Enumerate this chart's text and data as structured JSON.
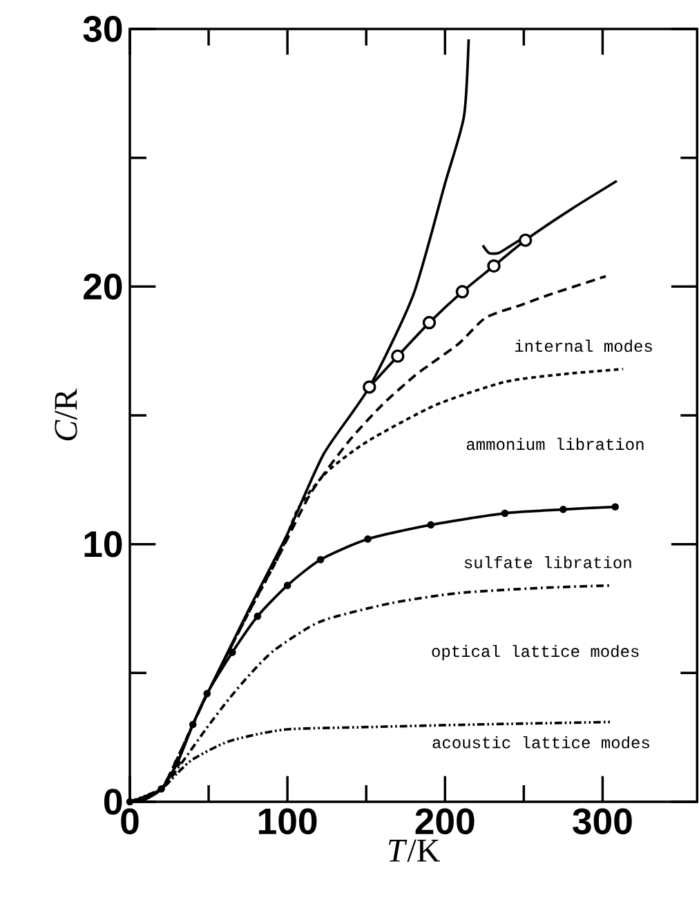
{
  "chart_data": {
    "type": "line",
    "xlabel": "*T*/K",
    "ylabel": "*C*/R",
    "xlim": [
      0,
      360
    ],
    "ylim": [
      0,
      30
    ],
    "xticks": [
      0,
      {
        "value": 50,
        "label": null
      },
      100,
      {
        "value": 150,
        "label": null
      },
      200,
      {
        "value": 250,
        "label": null
      },
      300
    ],
    "yticks": [
      0,
      {
        "value": 5,
        "label": null
      },
      10,
      {
        "value": 15,
        "label": null
      },
      20,
      {
        "value": 25,
        "label": null
      },
      30
    ],
    "grid": false,
    "series": [
      {
        "color": "#000000",
        "line_style": "solid",
        "x": [
          0,
          10,
          20,
          30,
          40,
          50,
          75,
          100,
          123,
          152,
          180,
          200,
          212,
          215
        ],
        "values": [
          0,
          0.1,
          0.5,
          1.5,
          3.0,
          4.3,
          7.4,
          10.4,
          13.5,
          16.1,
          19.7,
          24.0,
          26.6,
          29.6
        ]
      },
      {
        "color": "#000000",
        "line_style": "solid",
        "x": [
          152,
          170,
          190,
          211,
          231,
          251,
          280,
          309
        ],
        "values": [
          16.1,
          17.3,
          18.6,
          19.8,
          20.8,
          21.8,
          23.0,
          24.1
        ]
      },
      {
        "type": "scatter",
        "color": "#000000",
        "marker": "circle",
        "x": [
          152,
          170,
          190,
          211,
          231,
          251
        ],
        "values": [
          16.1,
          17.3,
          18.6,
          19.8,
          20.8,
          21.8
        ]
      },
      {
        "color": "#000000",
        "line_style": "solid",
        "x": [
          224,
          228,
          234,
          242,
          250
        ],
        "values": [
          21.6,
          21.3,
          21.3,
          21.6,
          21.9
        ]
      },
      {
        "color": "#000000",
        "line_style": "dashed",
        "x": [
          0,
          20,
          40,
          50,
          75,
          95,
          115,
          139,
          160,
          180,
          191,
          209,
          226,
          249,
          267,
          302
        ],
        "values": [
          0,
          0.5,
          3.0,
          4.3,
          7.3,
          9.6,
          12.0,
          14.0,
          15.4,
          16.5,
          17.0,
          17.8,
          18.8,
          19.3,
          19.7,
          20.4
        ]
      },
      {
        "color": "#000000",
        "line_style": "dotted",
        "x": [
          0,
          20,
          40,
          50,
          75,
          95,
          107,
          125,
          151,
          194,
          238,
          275,
          313
        ],
        "values": [
          0,
          0.5,
          3.0,
          4.3,
          7.3,
          9.6,
          11.4,
          12.8,
          14.0,
          15.4,
          16.3,
          16.6,
          16.8
        ]
      },
      {
        "color": "#000000",
        "line_style": "solid",
        "marker": "circle",
        "x": [
          0,
          20,
          30,
          40,
          49,
          65,
          81,
          100,
          121,
          151,
          191,
          238,
          275,
          308
        ],
        "values": [
          0,
          0.5,
          1.5,
          3.0,
          4.2,
          5.8,
          7.2,
          8.4,
          9.4,
          10.2,
          10.75,
          11.2,
          11.35,
          11.45
        ]
      },
      {
        "color": "#000000",
        "line_style": "dashdotted",
        "x": [
          0,
          20,
          34,
          48,
          63,
          77,
          92,
          121,
          165,
          208,
          260,
          306
        ],
        "values": [
          0,
          0.5,
          1.6,
          2.8,
          4.0,
          5.0,
          5.9,
          7.0,
          7.7,
          8.1,
          8.3,
          8.4
        ]
      },
      {
        "color": "#000000",
        "line_style": "dashdotdotted",
        "x": [
          0,
          20,
          30,
          40,
          63,
          98,
          151,
          220,
          306
        ],
        "values": [
          0,
          0.5,
          1.1,
          1.65,
          2.35,
          2.8,
          2.9,
          3.0,
          3.1
        ]
      }
    ],
    "annotations": [
      "internal modes",
      "ammonium libration",
      "sulfate libration",
      "optical lattice modes",
      "acoustic lattice modes"
    ]
  }
}
